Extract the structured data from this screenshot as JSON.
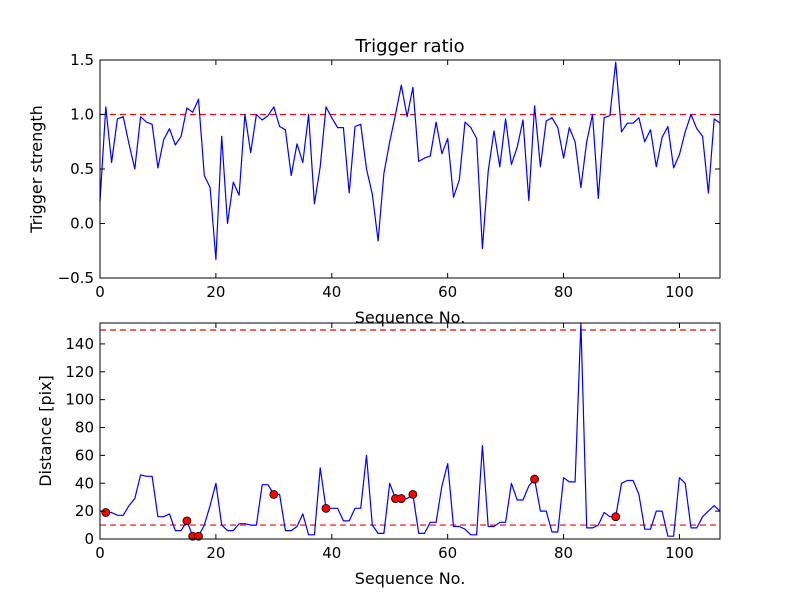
{
  "chart_data": [
    {
      "type": "line",
      "title": "Trigger ratio",
      "xlabel": "Sequence No.",
      "ylabel": "Trigger strength",
      "xlim": [
        0,
        107
      ],
      "ylim": [
        -0.5,
        1.5
      ],
      "xticks": [
        0,
        20,
        40,
        60,
        80,
        100
      ],
      "yticks": [
        -0.5,
        0.0,
        0.5,
        1.0,
        1.5
      ],
      "xtick_labels": [
        "0",
        "20",
        "40",
        "60",
        "80",
        "100"
      ],
      "ytick_labels": [
        "−0.5",
        "0.0",
        "0.5",
        "1.0",
        "1.5"
      ],
      "threshold_lines": [
        1.0
      ],
      "series": [
        {
          "name": "trigger strength",
          "color": "#0000ff",
          "x": [
            0,
            1,
            2,
            3,
            4,
            5,
            6,
            7,
            8,
            9,
            10,
            11,
            12,
            13,
            14,
            15,
            16,
            17,
            18,
            19,
            20,
            21,
            22,
            23,
            24,
            25,
            26,
            27,
            28,
            29,
            30,
            31,
            32,
            33,
            34,
            35,
            36,
            37,
            38,
            39,
            40,
            41,
            42,
            43,
            44,
            45,
            46,
            47,
            48,
            49,
            50,
            51,
            52,
            53,
            54,
            55,
            56,
            57,
            58,
            59,
            60,
            61,
            62,
            63,
            64,
            65,
            66,
            67,
            68,
            69,
            70,
            71,
            72,
            73,
            74,
            75,
            76,
            77,
            78,
            79,
            80,
            81,
            82,
            83,
            84,
            85,
            86,
            87,
            88,
            89,
            90,
            91,
            92,
            93,
            94,
            95,
            96,
            97,
            98,
            99,
            100,
            101,
            102,
            103,
            104,
            105,
            106,
            107
          ],
          "values": [
            0.2,
            1.07,
            0.56,
            0.96,
            0.98,
            0.73,
            0.5,
            0.98,
            0.93,
            0.91,
            0.51,
            0.77,
            0.87,
            0.72,
            0.8,
            1.06,
            1.02,
            1.14,
            0.44,
            0.33,
            -0.33,
            0.8,
            0.0,
            0.38,
            0.26,
            1.0,
            0.65,
            1.0,
            0.95,
            0.99,
            1.07,
            0.89,
            0.86,
            0.44,
            0.73,
            0.56,
            1.0,
            0.18,
            0.52,
            1.07,
            0.97,
            0.88,
            0.88,
            0.28,
            0.89,
            0.91,
            0.5,
            0.27,
            -0.16,
            0.46,
            0.75,
            1.0,
            1.27,
            0.98,
            1.25,
            0.57,
            0.6,
            0.62,
            0.93,
            0.64,
            0.78,
            0.24,
            0.4,
            0.93,
            0.88,
            0.78,
            -0.23,
            0.48,
            0.85,
            0.52,
            0.96,
            0.54,
            0.7,
            0.95,
            0.21,
            1.08,
            0.52,
            0.94,
            0.97,
            0.88,
            0.6,
            0.88,
            0.75,
            0.33,
            0.75,
            1.0,
            0.23,
            0.97,
            0.99,
            1.48,
            0.84,
            0.92,
            0.92,
            0.97,
            0.75,
            0.86,
            0.52,
            0.79,
            0.89,
            0.51,
            0.63,
            0.84,
            1.0,
            0.87,
            0.8,
            0.28,
            0.96,
            0.92
          ]
        }
      ]
    },
    {
      "type": "line",
      "title": "",
      "xlabel": "Sequence No.",
      "ylabel": "Distance [pix]",
      "xlim": [
        0,
        107
      ],
      "ylim": [
        0,
        155
      ],
      "xticks": [
        0,
        20,
        40,
        60,
        80,
        100
      ],
      "yticks": [
        0,
        20,
        40,
        60,
        80,
        100,
        120,
        140
      ],
      "xtick_labels": [
        "0",
        "20",
        "40",
        "60",
        "80",
        "100"
      ],
      "ytick_labels": [
        "0",
        "20",
        "40",
        "60",
        "80",
        "100",
        "120",
        "140"
      ],
      "threshold_lines": [
        10,
        150
      ],
      "series": [
        {
          "name": "distance",
          "color": "#0000ff",
          "x": [
            0,
            1,
            2,
            3,
            4,
            5,
            6,
            7,
            8,
            9,
            10,
            11,
            12,
            13,
            14,
            15,
            16,
            17,
            18,
            19,
            20,
            21,
            22,
            23,
            24,
            25,
            26,
            27,
            28,
            29,
            30,
            31,
            32,
            33,
            34,
            35,
            36,
            37,
            38,
            39,
            40,
            41,
            42,
            43,
            44,
            45,
            46,
            47,
            48,
            49,
            50,
            51,
            52,
            53,
            54,
            55,
            56,
            57,
            58,
            59,
            60,
            61,
            62,
            63,
            64,
            65,
            66,
            67,
            68,
            69,
            70,
            71,
            72,
            73,
            74,
            75,
            76,
            77,
            78,
            79,
            80,
            81,
            82,
            83,
            84,
            85,
            86,
            87,
            88,
            89,
            90,
            91,
            92,
            93,
            94,
            95,
            96,
            97,
            98,
            99,
            100,
            101,
            102,
            103,
            104,
            105,
            106,
            107
          ],
          "values": [
            20,
            19,
            19,
            17,
            17,
            24,
            29,
            46,
            45,
            45,
            16,
            16,
            18,
            6,
            6,
            13,
            2,
            2,
            10,
            24,
            40,
            10,
            6,
            6,
            11,
            11,
            10,
            10,
            39,
            39,
            32,
            32,
            6,
            6,
            9,
            18,
            3,
            3,
            51,
            22,
            22,
            22,
            13,
            13,
            22,
            22,
            60,
            10,
            4,
            4,
            40,
            29,
            29,
            29,
            32,
            4,
            4,
            12,
            12,
            38,
            54,
            9,
            9,
            7,
            3,
            3,
            67,
            9,
            9,
            12,
            12,
            40,
            28,
            28,
            38,
            43,
            20,
            20,
            5,
            5,
            44,
            41,
            41,
            155,
            8,
            8,
            10,
            19,
            16,
            16,
            40,
            42,
            42,
            32,
            7,
            7,
            20,
            20,
            2,
            2,
            44,
            40,
            8,
            8,
            16,
            20,
            24,
            20
          ]
        },
        {
          "name": "flagged points",
          "type": "scatter",
          "color": "#ff0000",
          "x": [
            1,
            15,
            16,
            17,
            30,
            39,
            51,
            52,
            54,
            75,
            89
          ],
          "values": [
            19,
            13,
            2,
            2,
            32,
            22,
            29,
            29,
            32,
            43,
            16
          ]
        }
      ]
    }
  ]
}
